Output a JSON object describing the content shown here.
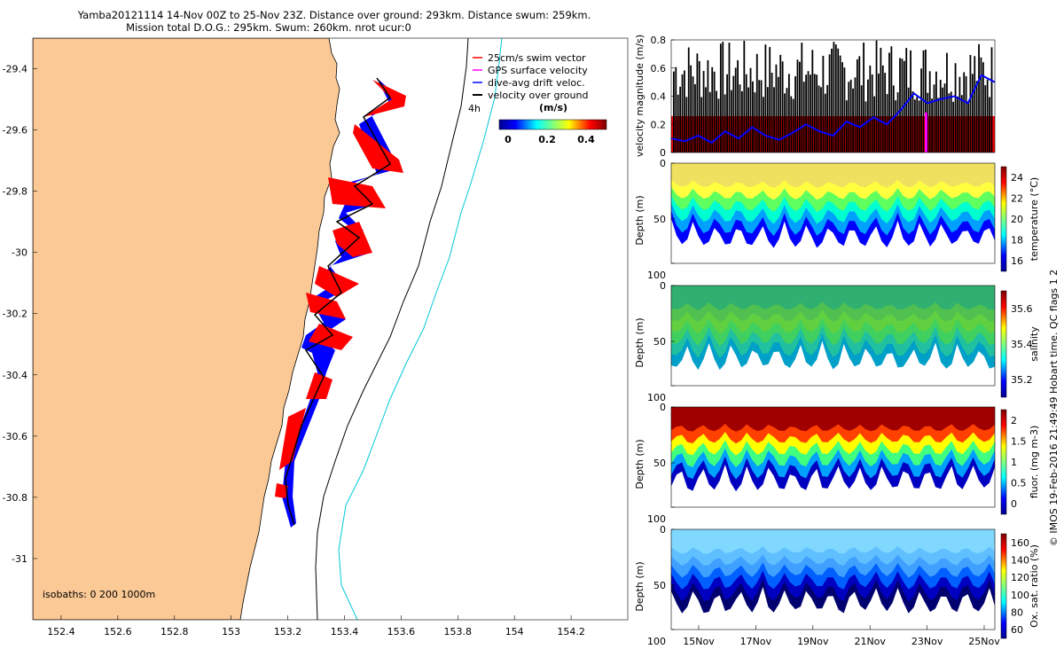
{
  "title": {
    "line1": "Yamba20121114 14-Nov 00Z to 25-Nov 23Z. Distance over ground: 293km. Distance swum: 259km.",
    "line2": "Mission total D.O.G.: 295km. Swum: 260km. nrot ucur:0"
  },
  "footer_note": "© IMOS 19-Feb-2016 21:49:49 Hobart time. QC flags 1  2",
  "colors": {
    "land": "#FBC995",
    "swim": "#FF0000",
    "gps": "#FF00FF",
    "drift": "#0000FF",
    "ground": "#000000",
    "isobath200": "#000000",
    "isobath1000": "#00C8D8"
  },
  "map": {
    "xticks": [
      "152.4",
      "152.6",
      "152.8",
      "153",
      "153.2",
      "153.4",
      "153.6",
      "153.8",
      "154",
      "154.2"
    ],
    "yticks": [
      "-29.4",
      "-29.6",
      "-29.8",
      "-30",
      "-30.2",
      "-30.4",
      "-30.6",
      "-30.8",
      "-31"
    ],
    "xlim": [
      152.3,
      154.4
    ],
    "ylim": [
      -31.2,
      -29.3
    ],
    "legend": [
      "25cm/s swim vector",
      "GPS surface velocity",
      "dive-avg drift veloc.",
      "velocity over ground"
    ],
    "time_label": "4h",
    "colorbar_label": "(m/s)",
    "colorbar_ticks": [
      "0",
      "0.2",
      "0.4"
    ],
    "isobaths_label": "isobaths: 0   200  1000m"
  },
  "chart_data": [
    {
      "type": "line",
      "title": "",
      "ylabel": "velocity magnitude (m/s)",
      "ylim": [
        0,
        0.8
      ],
      "yticks": [
        "0",
        "0.2",
        "0.4",
        "0.6",
        "0.8"
      ],
      "series": [
        {
          "name": "",
          "color": "#0000FF",
          "x_days": [
            0,
            0.5,
            1,
            1.5,
            2,
            2.5,
            3,
            3.5,
            4,
            4.5,
            5,
            5.5,
            6,
            6.5,
            7,
            7.5,
            8,
            8.5,
            9,
            9.5,
            10,
            10.5,
            11,
            11.5,
            12
          ],
          "values": [
            0.1,
            0.08,
            0.12,
            0.07,
            0.15,
            0.1,
            0.18,
            0.12,
            0.09,
            0.14,
            0.2,
            0.15,
            0.12,
            0.22,
            0.18,
            0.25,
            0.2,
            0.3,
            0.42,
            0.35,
            0.38,
            0.4,
            0.35,
            0.55,
            0.5
          ]
        }
      ]
    },
    {
      "type": "heatmap",
      "ylabel": "Depth (m)",
      "colorbar_label": "temperature (°C)",
      "colorbar_ticks": [
        "16",
        "18",
        "20",
        "22",
        "24"
      ],
      "yticks": [
        "0",
        "50",
        "100"
      ],
      "ylim": [
        0,
        100
      ]
    },
    {
      "type": "heatmap",
      "ylabel": "Depth (m)",
      "colorbar_label": "salinity",
      "colorbar_ticks": [
        "35.2",
        "35.4",
        "35.6"
      ],
      "yticks": [
        "0",
        "50",
        "100"
      ],
      "ylim": [
        0,
        100
      ]
    },
    {
      "type": "heatmap",
      "ylabel": "Depth (m)",
      "colorbar_label": "fluor.  (mg m-3)",
      "colorbar_ticks": [
        "0",
        "0.5",
        "1",
        "1.5",
        "2"
      ],
      "yticks": [
        "0",
        "50",
        "100"
      ],
      "ylim": [
        0,
        100
      ]
    },
    {
      "type": "heatmap",
      "ylabel": "Depth (m)",
      "colorbar_label": "Ox. sat. ratio (%)",
      "colorbar_ticks": [
        "60",
        "80",
        "100",
        "120",
        "140",
        "160"
      ],
      "yticks": [
        "0",
        "50",
        "100"
      ],
      "ylim": [
        0,
        100
      ],
      "xticks": [
        "15Nov",
        "17Nov",
        "19Nov",
        "21Nov",
        "23Nov",
        "25Nov"
      ]
    }
  ]
}
